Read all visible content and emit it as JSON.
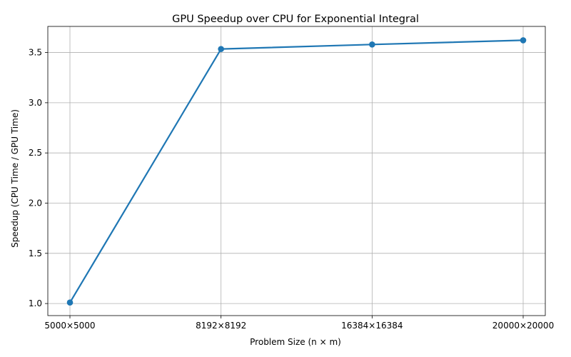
{
  "chart_data": {
    "type": "line",
    "title": "GPU Speedup over CPU for Exponential Integral",
    "xlabel": "Problem Size (n × m)",
    "ylabel": "Speedup (CPU Time / GPU Time)",
    "categories": [
      "5000×5000",
      "8192×8192",
      "16384×16384",
      "20000×20000"
    ],
    "series": [
      {
        "values": [
          1.01,
          3.535,
          3.58,
          3.622
        ],
        "color": "#1f77b4",
        "marker": "circle"
      }
    ],
    "ylim": [
      0.88,
      3.76
    ],
    "yticks": [
      1.0,
      1.5,
      2.0,
      2.5,
      3.0,
      3.5
    ],
    "ytick_labels": [
      "1.0",
      "1.5",
      "2.0",
      "2.5",
      "3.0",
      "3.5"
    ],
    "grid": true,
    "legend": false
  }
}
